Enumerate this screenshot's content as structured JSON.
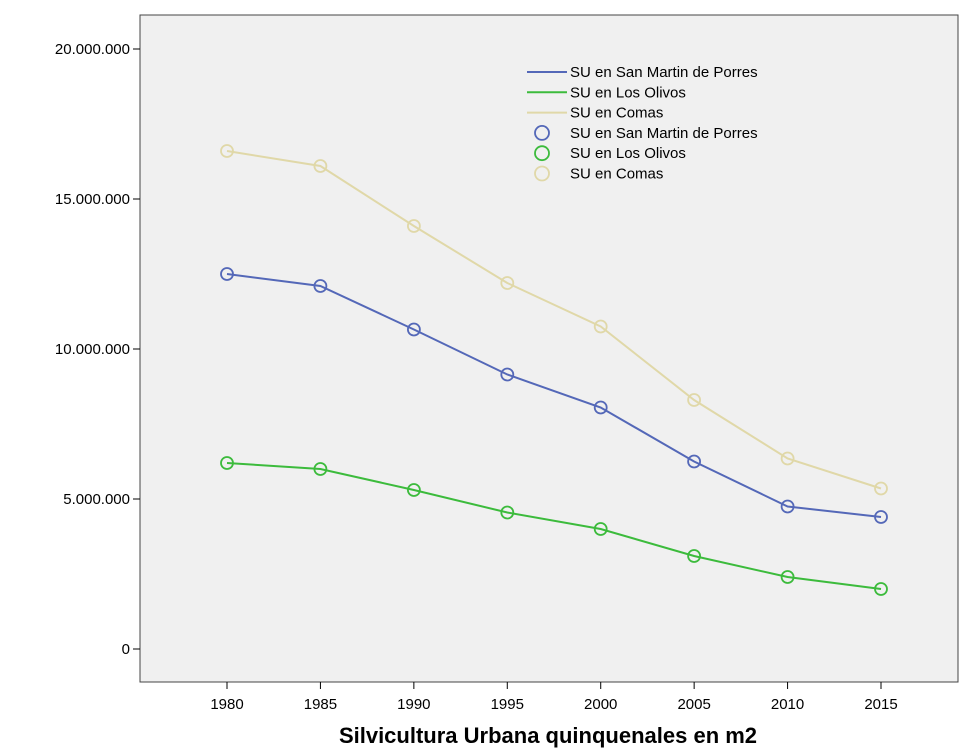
{
  "chart_data": {
    "type": "line",
    "title": "",
    "xlabel": "Silvicultura Urbana quinquenales en m2",
    "ylabel": "",
    "x": [
      "1980",
      "1985",
      "1990",
      "1995",
      "2000",
      "2005",
      "2010",
      "2015"
    ],
    "x_range": [
      1975,
      2020
    ],
    "ylim": [
      -1000000,
      21000000
    ],
    "y_ticks": [
      0,
      5000000,
      10000000,
      15000000,
      20000000
    ],
    "y_tick_labels": [
      "0",
      "5.000.000",
      "10.000.000",
      "15.000.000",
      "20.000.000"
    ],
    "grid": false,
    "legend_position": "top-right",
    "background": "#f0f0f0",
    "series": [
      {
        "name": "SU en San Martin de Porres",
        "color": "#5468b8",
        "values": [
          12500000,
          12100000,
          10650000,
          9150000,
          8050000,
          6250000,
          4750000,
          4400000
        ]
      },
      {
        "name": "SU en Los Olivos",
        "color": "#3cbb3c",
        "values": [
          6200000,
          6000000,
          5300000,
          4550000,
          4000000,
          3100000,
          2400000,
          2000000
        ]
      },
      {
        "name": "SU en Comas",
        "color": "#e0d8a8",
        "values": [
          16600000,
          16100000,
          14100000,
          12200000,
          10750000,
          8300000,
          6350000,
          5350000
        ]
      }
    ],
    "legend_entries": [
      {
        "label": "SU en San Martin de Porres",
        "kind": "line",
        "color": "#5468b8"
      },
      {
        "label": "SU en Los Olivos",
        "kind": "line",
        "color": "#3cbb3c"
      },
      {
        "label": "SU en Comas",
        "kind": "line",
        "color": "#e0d8a8"
      },
      {
        "label": "SU en San Martin de Porres",
        "kind": "marker",
        "color": "#5468b8"
      },
      {
        "label": "SU en Los Olivos",
        "kind": "marker",
        "color": "#3cbb3c"
      },
      {
        "label": "SU en Comas",
        "kind": "marker",
        "color": "#e0d8a8"
      }
    ]
  }
}
